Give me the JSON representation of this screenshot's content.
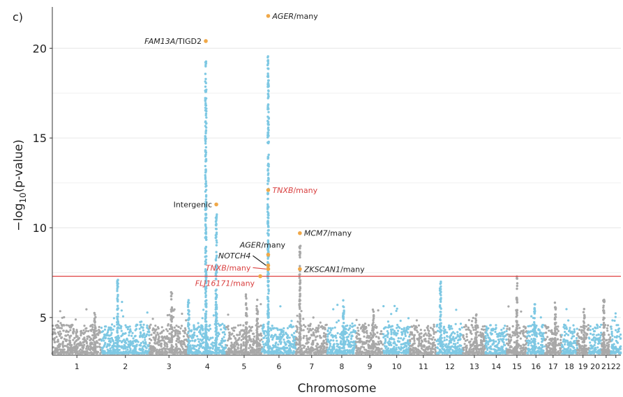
{
  "chart_data": {
    "type": "scatter",
    "subtype": "manhattan",
    "panel_label": "c)",
    "xlabel": "Chromosome",
    "ylabel_prefix": "−log",
    "ylabel_sub": "10",
    "ylabel_suffix": "(p-value)",
    "ylim": [
      2.9,
      22.3
    ],
    "yticks": [
      5,
      10,
      15,
      20
    ],
    "significance_threshold": 7.3,
    "grid": true,
    "colors": {
      "odd_chromosome": "#a8a8a8",
      "even_chromosome": "#7ec8e3",
      "highlight": "#f0a848",
      "threshold": "#e04040",
      "annotation_black": "#222222",
      "annotation_red": "#d94040"
    },
    "chromosomes": [
      {
        "label": "1",
        "start": 0,
        "end": 248
      },
      {
        "label": "2",
        "start": 248,
        "end": 490
      },
      {
        "label": "3",
        "start": 490,
        "end": 688
      },
      {
        "label": "4",
        "start": 688,
        "end": 878
      },
      {
        "label": "5",
        "start": 878,
        "end": 1059
      },
      {
        "label": "6",
        "start": 1059,
        "end": 1230
      },
      {
        "label": "7",
        "start": 1230,
        "end": 1389
      },
      {
        "label": "8",
        "start": 1389,
        "end": 1534
      },
      {
        "label": "9",
        "start": 1534,
        "end": 1672
      },
      {
        "label": "10",
        "start": 1672,
        "end": 1806
      },
      {
        "label": "11",
        "start": 1806,
        "end": 1941
      },
      {
        "label": "12",
        "start": 1941,
        "end": 2074
      },
      {
        "label": "13",
        "start": 2074,
        "end": 2188
      },
      {
        "label": "14",
        "start": 2188,
        "end": 2295
      },
      {
        "label": "15",
        "start": 2295,
        "end": 2397
      },
      {
        "label": "16",
        "start": 2397,
        "end": 2487
      },
      {
        "label": "17",
        "start": 2487,
        "end": 2570
      },
      {
        "label": "18",
        "start": 2570,
        "end": 2650
      },
      {
        "label": "19",
        "start": 2650,
        "end": 2709
      },
      {
        "label": "20",
        "start": 2709,
        "end": 2773
      },
      {
        "label": "21",
        "start": 2773,
        "end": 2820
      },
      {
        "label": "22",
        "start": 2820,
        "end": 2871
      }
    ],
    "peaks": [
      {
        "x": 215,
        "top": 5.5
      },
      {
        "x": 330,
        "top": 7.2
      },
      {
        "x": 602,
        "top": 6.5
      },
      {
        "x": 688,
        "top": 6.0
      },
      {
        "x": 775,
        "top": 19.5
      },
      {
        "x": 828,
        "top": 11.2
      },
      {
        "x": 980,
        "top": 6.4
      },
      {
        "x": 1035,
        "top": 6.0
      },
      {
        "x": 1090,
        "top": 19.8
      },
      {
        "x": 1250,
        "top": 9.0
      },
      {
        "x": 1470,
        "top": 6.0
      },
      {
        "x": 1620,
        "top": 5.5
      },
      {
        "x": 1960,
        "top": 7.0
      },
      {
        "x": 2140,
        "top": 5.2
      },
      {
        "x": 2345,
        "top": 7.3
      },
      {
        "x": 2435,
        "top": 5.8
      },
      {
        "x": 2540,
        "top": 5.9
      },
      {
        "x": 2685,
        "top": 5.5
      },
      {
        "x": 2785,
        "top": 6.0
      }
    ],
    "highlighted_points": [
      {
        "x": 1090,
        "y": 21.8
      },
      {
        "x": 775,
        "y": 20.4
      },
      {
        "x": 1090,
        "y": 12.1
      },
      {
        "x": 828,
        "y": 11.3
      },
      {
        "x": 1250,
        "y": 9.7
      },
      {
        "x": 1090,
        "y": 8.5
      },
      {
        "x": 1090,
        "y": 7.9
      },
      {
        "x": 1090,
        "y": 7.7
      },
      {
        "x": 1250,
        "y": 7.7
      },
      {
        "x": 1050,
        "y": 7.3
      }
    ],
    "annotations": [
      {
        "gene": "AGER",
        "suffix": "/many",
        "x": 1090,
        "y": 21.8,
        "side": "right",
        "color": "black"
      },
      {
        "gene": "FAM13A",
        "suffix": "/TIGD2",
        "x": 775,
        "y": 20.4,
        "side": "left",
        "color": "black"
      },
      {
        "gene": "TNXB",
        "suffix": "/many",
        "x": 1090,
        "y": 12.1,
        "side": "right",
        "color": "red"
      },
      {
        "gene": "",
        "suffix": "Intergenic",
        "x": 828,
        "y": 11.3,
        "side": "left",
        "color": "black"
      },
      {
        "gene": "MCM7",
        "suffix": "/many",
        "x": 1250,
        "y": 9.7,
        "side": "right",
        "color": "black"
      },
      {
        "gene": "AGER",
        "suffix": "/many",
        "x": 1090,
        "y": 8.5,
        "side": "above-left",
        "color": "black"
      },
      {
        "gene": "NOTCH4",
        "suffix": "",
        "x": 1090,
        "y": 7.9,
        "side": "left-line",
        "color": "black"
      },
      {
        "gene": "TNXB",
        "suffix": "/many",
        "x": 1090,
        "y": 7.7,
        "side": "left-line",
        "color": "red"
      },
      {
        "gene": "ZKSCAN1",
        "suffix": "/many",
        "x": 1250,
        "y": 7.7,
        "side": "right",
        "color": "black"
      },
      {
        "gene": "FLJ16171",
        "suffix": "/many",
        "x": 1050,
        "y": 7.3,
        "side": "below-left",
        "color": "red"
      }
    ]
  }
}
